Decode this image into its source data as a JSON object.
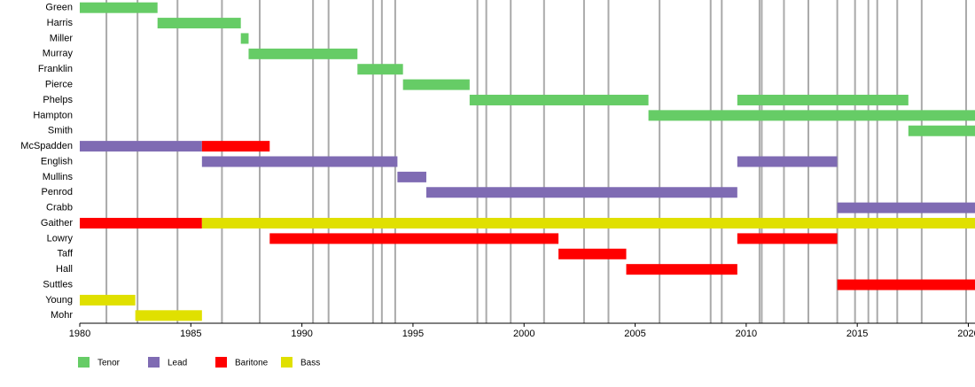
{
  "chart_data": {
    "type": "timeline",
    "categories": [
      "Green",
      "Harris",
      "Miller",
      "Murray",
      "Franklin",
      "Pierce",
      "Phelps",
      "Hampton",
      "Smith",
      "McSpadden",
      "English",
      "Mullins",
      "Penrod",
      "Crabb",
      "Gaither",
      "Lowry",
      "Taff",
      "Hall",
      "Suttles",
      "Young",
      "Mohr"
    ],
    "xlim": [
      1980,
      2020.3
    ],
    "xticks": [
      1980,
      1985,
      1990,
      1995,
      2000,
      2005,
      2010,
      2015,
      2020
    ],
    "releases": [
      1981.2,
      1982.6,
      1984.4,
      1986.4,
      1988.1,
      1990.5,
      1991.2,
      1993.2,
      1993.6,
      1994.2,
      1997.9,
      1998.3,
      1999.4,
      2000.9,
      2002.7,
      2003.8,
      2006.1,
      2008.4,
      2008.9,
      2010.6,
      2010.7,
      2011.7,
      2012.8,
      2014.1,
      2014.9,
      2015.5,
      2015.9,
      2016.8,
      2017.9,
      2019.9
    ],
    "release_color": "#aaaaaa",
    "series": [
      {
        "name": "Tenor",
        "color": "#66cc66",
        "values": [
          [
            [
              1980,
              1983.5
            ]
          ],
          [
            [
              1983.5,
              1987.25
            ]
          ],
          [
            [
              1987.25,
              1987.6
            ]
          ],
          [
            [
              1987.6,
              1992.5
            ]
          ],
          [
            [
              1992.5,
              1994.55
            ]
          ],
          [
            [
              1994.55,
              1997.55
            ]
          ],
          [
            [
              1997.55,
              2005.6
            ],
            [
              2009.6,
              2017.3
            ]
          ],
          [
            [
              2005.6,
              2020.3
            ]
          ],
          [
            [
              2017.3,
              2020.3
            ]
          ],
          null,
          null,
          null,
          null,
          null,
          null,
          null,
          null,
          null,
          null,
          null,
          null
        ]
      },
      {
        "name": "Lead",
        "color": "#7f6bb3",
        "values": [
          null,
          null,
          null,
          null,
          null,
          null,
          null,
          null,
          null,
          [
            [
              1980,
              1985.5
            ]
          ],
          [
            [
              1985.5,
              1994.3
            ],
            [
              2009.6,
              2014.1
            ]
          ],
          [
            [
              1994.3,
              1995.6
            ]
          ],
          [
            [
              1995.6,
              2009.6
            ]
          ],
          [
            [
              2014.1,
              2020.3
            ]
          ],
          null,
          null,
          null,
          null,
          null,
          null,
          null
        ]
      },
      {
        "name": "Baritone",
        "color": "#ff0000",
        "values": [
          null,
          null,
          null,
          null,
          null,
          null,
          null,
          null,
          null,
          [
            [
              1985.5,
              1988.55
            ]
          ],
          null,
          null,
          null,
          null,
          [
            [
              1980,
              1985.5
            ]
          ],
          [
            [
              1988.55,
              2001.55
            ],
            [
              2009.6,
              2014.1
            ]
          ],
          [
            [
              2001.55,
              2004.6
            ]
          ],
          [
            [
              2004.6,
              2009.6
            ]
          ],
          [
            [
              2014.1,
              2020.3
            ]
          ],
          null,
          null
        ]
      },
      {
        "name": "Bass",
        "color": "#e0e000",
        "values": [
          null,
          null,
          null,
          null,
          null,
          null,
          null,
          null,
          null,
          null,
          null,
          null,
          null,
          null,
          [
            [
              1985.5,
              2020.3
            ]
          ],
          null,
          null,
          null,
          null,
          [
            [
              1980,
              1982.5
            ]
          ],
          [
            [
              1982.5,
              1985.5
            ]
          ]
        ]
      }
    ]
  }
}
